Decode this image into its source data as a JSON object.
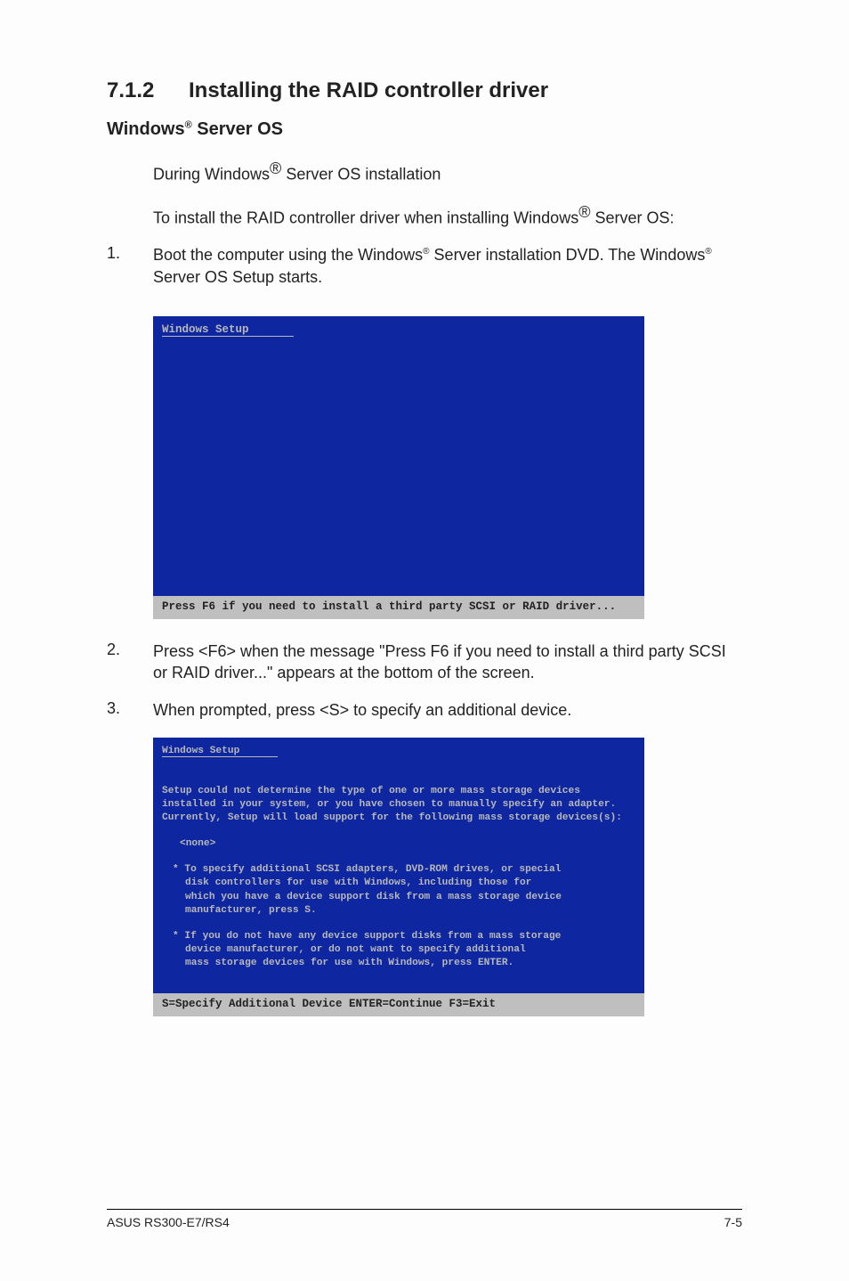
{
  "heading": {
    "number": "7.1.2",
    "title": "Installing the RAID controller driver"
  },
  "subheading": {
    "prefix": "Windows",
    "suffix": " Server OS"
  },
  "para1": {
    "a": "During Windows",
    "b": " Server OS installation"
  },
  "para2": {
    "a": "To install the RAID controller driver when installing Windows",
    "b": " Server OS:"
  },
  "step1": {
    "n": "1.",
    "a": "Boot the computer using the Windows",
    "b": " Server installation DVD. The Windows",
    "c": " Server OS Setup starts."
  },
  "shot1": {
    "title": "Windows Setup",
    "bar": "Press F6 if you need to install a third party SCSI or RAID driver..."
  },
  "step2": {
    "n": "2.",
    "t": "Press <F6> when the message \"Press F6 if you need to install a third party SCSI or RAID driver...\" appears at the bottom of the screen."
  },
  "step3": {
    "n": "3.",
    "t": "When prompted, press <S> to specify an additional device."
  },
  "shot2": {
    "title": "Windows Setup",
    "l1": "Setup could not determine the type of one or more mass storage devices",
    "l2": "installed in your system, or you have chosen to manually specify an adapter.",
    "l3": "Currently, Setup will load support for the following mass storage devices(s):",
    "none": "<none>",
    "b1a": "* To specify additional SCSI adapters, DVD-ROM drives, or special",
    "b1b": "disk controllers for use with Windows, including those for",
    "b1c": "which you have a device support disk from a mass storage device",
    "b1d": "manufacturer, press S.",
    "b2a": "* If you do not have any device support disks from a mass storage",
    "b2b": "device manufacturer, or do not want to specify additional",
    "b2c": "mass storage devices for use with Windows, press ENTER.",
    "bar": "S=Specify Additional Device    ENTER=Continue    F3=Exit"
  },
  "footer": {
    "left": "ASUS RS300-E7/RS4",
    "right": "7-5"
  }
}
